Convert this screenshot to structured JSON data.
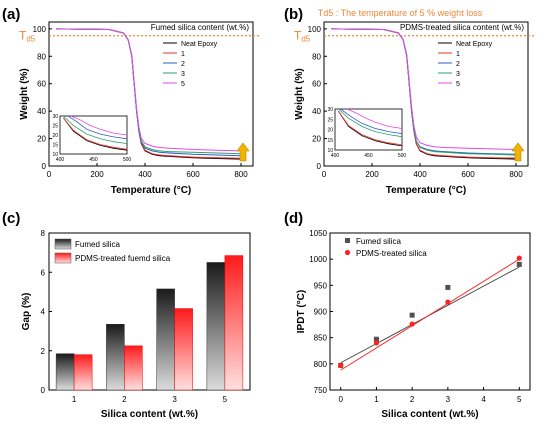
{
  "colors": {
    "neat": "#000000",
    "s1": "#e8322d",
    "s2": "#2c5fc4",
    "s3": "#2aa26f",
    "s5": "#e447e8",
    "td5": "#e8883a",
    "arrow": "#f0b400",
    "arrow_stroke": "#b8860b",
    "fumed_point": "#505050",
    "pdms_point": "#ff2222",
    "fumed_line": "#444444",
    "pdms_line": "#ff2222"
  },
  "panel_a": {
    "label": "(a)"
  },
  "panel_b": {
    "label": "(b)",
    "note": "Td5 : The temperature of 5 % weight loss"
  },
  "panel_c": {
    "label": "(c)"
  },
  "panel_d": {
    "label": "(d)"
  },
  "chart_data": [
    {
      "type": "line",
      "panel": "a",
      "legend_title": "Fumed silica content (wt.%)",
      "legend_position": "top-right",
      "xlabel": "Temperature (°C)",
      "ylabel": "Weight (%)",
      "xlim": [
        0,
        850
      ],
      "ylim": [
        0,
        105
      ],
      "xticks": [
        "0",
        "200",
        "400",
        "600",
        "800"
      ],
      "yticks": [
        "0",
        "20",
        "40",
        "60",
        "80",
        "100"
      ],
      "td5_label": "T",
      "td5_sub": "d5",
      "td5_y": 95,
      "series": [
        {
          "name": "Neat Epoxy",
          "colorKey": "neat",
          "x": [
            30,
            250,
            310,
            330,
            345,
            355,
            365,
            375,
            385,
            400,
            430,
            460,
            500,
            600,
            700,
            800
          ],
          "y": [
            100,
            99.5,
            97,
            92,
            80,
            60,
            40,
            25,
            16,
            11,
            8.5,
            7.5,
            7,
            6,
            5.5,
            5
          ]
        },
        {
          "name": "1",
          "colorKey": "s1",
          "x": [
            30,
            250,
            310,
            330,
            345,
            355,
            365,
            375,
            385,
            400,
            430,
            460,
            500,
            600,
            700,
            800
          ],
          "y": [
            100,
            99.5,
            97,
            92,
            80,
            60,
            40,
            25,
            16,
            11.5,
            9,
            8,
            7.5,
            6.5,
            6,
            5.7
          ]
        },
        {
          "name": "2",
          "colorKey": "s2",
          "x": [
            30,
            250,
            310,
            330,
            345,
            355,
            365,
            375,
            385,
            400,
            430,
            460,
            500,
            600,
            700,
            800
          ],
          "y": [
            100,
            99.5,
            97,
            92,
            80,
            60,
            40,
            25,
            17,
            13,
            11,
            10,
            9.5,
            8.5,
            8,
            7.5
          ]
        },
        {
          "name": "3",
          "colorKey": "s3",
          "x": [
            30,
            250,
            310,
            330,
            345,
            355,
            365,
            375,
            385,
            400,
            430,
            460,
            500,
            600,
            700,
            800
          ],
          "y": [
            100,
            99.5,
            97,
            92,
            80,
            60,
            40,
            26,
            18,
            14,
            12,
            11,
            10.5,
            10,
            9.5,
            9
          ]
        },
        {
          "name": "5",
          "colorKey": "s5",
          "x": [
            30,
            250,
            310,
            330,
            345,
            355,
            365,
            375,
            385,
            400,
            430,
            460,
            500,
            600,
            700,
            800
          ],
          "y": [
            100,
            99.5,
            97,
            92,
            81,
            61,
            42,
            28,
            20,
            16.5,
            14.5,
            13.5,
            13,
            12,
            11.5,
            11
          ]
        }
      ],
      "inset": {
        "xlim": [
          400,
          500
        ],
        "ylim": [
          10,
          30
        ],
        "xticks": [
          "400",
          "450",
          "500"
        ],
        "yticks": [
          "10",
          "15",
          "20",
          "25",
          "30"
        ],
        "series": [
          {
            "colorKey": "neat",
            "x": [
              405,
              420,
              440,
              460,
              480,
              500
            ],
            "y": [
              29,
              22,
              17,
              14.5,
              13,
              12
            ]
          },
          {
            "colorKey": "s1",
            "x": [
              405,
              420,
              440,
              460,
              480,
              500
            ],
            "y": [
              29,
              22.5,
              17.5,
              15,
              13.5,
              12.5
            ]
          },
          {
            "colorKey": "s3",
            "x": [
              405,
              420,
              440,
              460,
              480,
              500
            ],
            "y": [
              30,
              25,
              20.5,
              18,
              16.5,
              15.5
            ]
          },
          {
            "colorKey": "s2",
            "x": [
              412,
              425,
              440,
              460,
              480,
              500
            ],
            "y": [
              30,
              27,
              23,
              20.5,
              19,
              18
            ]
          },
          {
            "colorKey": "s5",
            "x": [
              416,
              430,
              445,
              460,
              480,
              500
            ],
            "y": [
              30,
              28,
              25,
              23,
              21,
              20
            ]
          }
        ]
      }
    },
    {
      "type": "line",
      "panel": "b",
      "legend_title": "PDMS-treated silica content (wt.%)",
      "legend_position": "top-right",
      "xlabel": "Temperature (°C)",
      "ylabel": "Weight (%)",
      "xlim": [
        0,
        850
      ],
      "ylim": [
        0,
        105
      ],
      "xticks": [
        "0",
        "200",
        "400",
        "600",
        "800"
      ],
      "yticks": [
        "0",
        "20",
        "40",
        "60",
        "80",
        "100"
      ],
      "td5_label": "T",
      "td5_sub": "d5",
      "td5_y": 95,
      "series": [
        {
          "name": "Neat Epoxy",
          "colorKey": "neat",
          "x": [
            30,
            250,
            310,
            330,
            345,
            355,
            365,
            375,
            385,
            400,
            430,
            460,
            500,
            600,
            700,
            800
          ],
          "y": [
            100,
            99.5,
            97,
            92,
            80,
            60,
            40,
            25,
            16,
            11,
            8.5,
            7.5,
            7,
            6,
            5.5,
            5
          ]
        },
        {
          "name": "1",
          "colorKey": "s1",
          "x": [
            30,
            250,
            310,
            330,
            345,
            355,
            365,
            375,
            385,
            400,
            430,
            460,
            500,
            600,
            700,
            800
          ],
          "y": [
            100,
            99.5,
            97,
            92,
            80,
            60,
            40,
            25,
            16,
            11.5,
            9,
            8,
            7.5,
            6.5,
            6,
            5.8
          ]
        },
        {
          "name": "2",
          "colorKey": "s2",
          "x": [
            30,
            250,
            310,
            330,
            345,
            355,
            365,
            375,
            385,
            400,
            430,
            460,
            500,
            600,
            700,
            800
          ],
          "y": [
            100,
            99.5,
            97,
            92,
            80,
            60,
            40,
            26,
            18,
            14,
            12,
            11,
            10.5,
            9.5,
            9,
            8.5
          ]
        },
        {
          "name": "3",
          "colorKey": "s3",
          "x": [
            30,
            250,
            310,
            330,
            345,
            355,
            365,
            375,
            385,
            400,
            430,
            460,
            500,
            600,
            700,
            800
          ],
          "y": [
            100,
            99.5,
            97,
            92,
            80,
            60,
            40,
            26,
            18,
            13.5,
            11.5,
            10.5,
            10,
            9,
            8.5,
            8
          ]
        },
        {
          "name": "5",
          "colorKey": "s5",
          "x": [
            30,
            250,
            310,
            330,
            345,
            355,
            365,
            375,
            385,
            400,
            430,
            460,
            500,
            600,
            700,
            800
          ],
          "y": [
            100,
            99.5,
            97,
            92,
            81,
            62,
            43,
            29,
            21,
            17,
            15,
            14,
            13.5,
            13,
            12.5,
            12
          ]
        }
      ],
      "inset": {
        "xlim": [
          400,
          500
        ],
        "ylim": [
          10,
          30
        ],
        "xticks": [
          "400",
          "450",
          "500"
        ],
        "yticks": [
          "10",
          "15",
          "20",
          "25",
          "30"
        ],
        "series": [
          {
            "colorKey": "neat",
            "x": [
              405,
              420,
              440,
              460,
              480,
              500
            ],
            "y": [
              29,
              21.5,
              17,
              14.5,
              13,
              12
            ]
          },
          {
            "colorKey": "s1",
            "x": [
              405,
              420,
              440,
              460,
              480,
              500
            ],
            "y": [
              29,
              22,
              17.5,
              15,
              13.5,
              12.5
            ]
          },
          {
            "colorKey": "s3",
            "x": [
              405,
              420,
              440,
              460,
              480,
              500
            ],
            "y": [
              30,
              25.5,
              21.5,
              19,
              17.5,
              16.5
            ]
          },
          {
            "colorKey": "s2",
            "x": [
              408,
              425,
              440,
              460,
              480,
              500
            ],
            "y": [
              30,
              26,
              23,
              20.5,
              19,
              18
            ]
          },
          {
            "colorKey": "s5",
            "x": [
              418,
              432,
              446,
              460,
              480,
              500
            ],
            "y": [
              30,
              28,
              25.5,
              23.5,
              21.5,
              20.5
            ]
          }
        ]
      }
    },
    {
      "type": "bar",
      "panel": "c",
      "xlabel": "Silica content (wt.%)",
      "ylabel": "Gap (%)",
      "ylim": [
        0,
        8
      ],
      "yticks": [
        "0",
        "2",
        "4",
        "6",
        "8"
      ],
      "categories": [
        "1",
        "2",
        "3",
        "5"
      ],
      "legend_position": "top-left",
      "series": [
        {
          "name": "Fumed silica",
          "style": "dark",
          "values": [
            1.85,
            3.35,
            5.15,
            6.5
          ]
        },
        {
          "name": "PDMS-treated fuemd silica",
          "style": "red",
          "values": [
            1.8,
            2.25,
            4.15,
            6.85
          ]
        }
      ]
    },
    {
      "type": "scatter",
      "panel": "d",
      "xlabel": "Silica content (wt.%)",
      "ylabel": "IPDT (°C)",
      "xlim": [
        -0.3,
        5.3
      ],
      "ylim": [
        750,
        1050
      ],
      "xticks": [
        "0",
        "1",
        "2",
        "3",
        "4",
        "5"
      ],
      "yticks": [
        "750",
        "800",
        "850",
        "900",
        "950",
        "1000",
        "1050"
      ],
      "legend_position": "top-left",
      "series": [
        {
          "name": "Fumed silica",
          "marker": "square",
          "x": [
            0,
            1,
            2,
            3,
            5
          ],
          "y": [
            797,
            847,
            893,
            946,
            990
          ],
          "fit": [
            802,
            985
          ]
        },
        {
          "name": "PDMS-treated silica",
          "marker": "circle",
          "x": [
            0,
            1,
            2,
            3,
            5
          ],
          "y": [
            797,
            840,
            876,
            918,
            1002
          ],
          "fit": [
            788,
            1000
          ]
        }
      ]
    }
  ]
}
